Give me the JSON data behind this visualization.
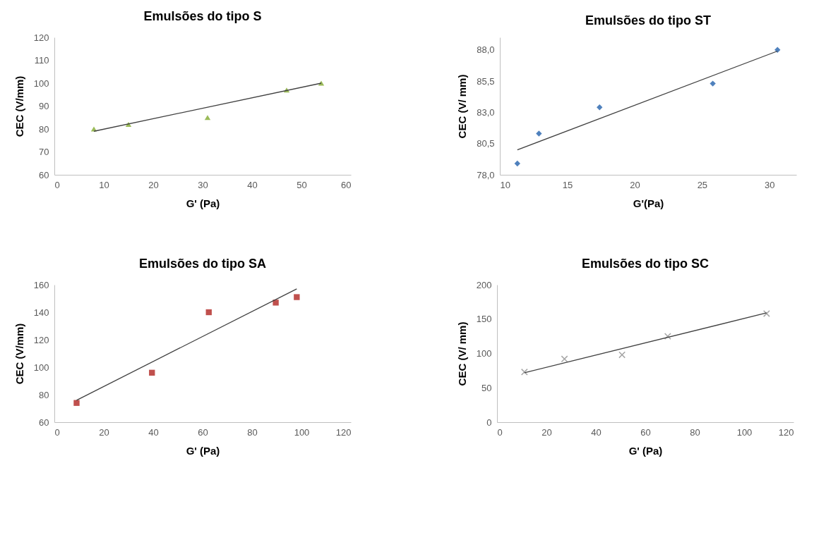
{
  "chart_data": [
    {
      "type": "scatter",
      "title": "Emulsões do tipo S",
      "xlabel": "G' (Pa)",
      "ylabel": "CEC (V/mm)",
      "xlim": [
        0,
        60
      ],
      "xticks": [
        0,
        10,
        20,
        30,
        40,
        50,
        60
      ],
      "ylim": [
        60,
        120
      ],
      "yticks": [
        60,
        70,
        80,
        90,
        100,
        110,
        120
      ],
      "grid": false,
      "series": [
        {
          "marker": "triangle",
          "color": "#9bbb59",
          "x": [
            8,
            15,
            31,
            47,
            54
          ],
          "values": [
            80,
            82,
            85,
            97,
            100
          ]
        },
        {
          "type": "line",
          "marker": "none",
          "color": "#404040",
          "line_style": "solid",
          "x": [
            8,
            54
          ],
          "values": [
            79,
            100
          ]
        }
      ]
    },
    {
      "type": "scatter",
      "title": "Emulsões do tipo ST",
      "xlabel": "G'(Pa)",
      "ylabel": "CEC (V/ mm)",
      "xlim": [
        10,
        32
      ],
      "xticks": [
        10,
        15,
        20,
        25,
        30
      ],
      "ylim": [
        78,
        89
      ],
      "yticks": [
        {
          "value": 78,
          "label": "78,0"
        },
        {
          "value": 80.5,
          "label": "80,5"
        },
        {
          "value": 83,
          "label": "83,0"
        },
        {
          "value": 85.5,
          "label": "85,5"
        },
        {
          "value": 88,
          "label": "88,0"
        }
      ],
      "grid": false,
      "series": [
        {
          "marker": "diamond",
          "color": "#4f81bd",
          "x": [
            11.3,
            12.9,
            17.4,
            25.8,
            30.6
          ],
          "values": [
            78.9,
            81.3,
            83.4,
            85.3,
            88.0
          ]
        },
        {
          "type": "line",
          "marker": "none",
          "color": "#404040",
          "line_style": "solid",
          "x": [
            11.3,
            30.6
          ],
          "values": [
            80.0,
            87.9
          ]
        }
      ]
    },
    {
      "type": "scatter",
      "title": "Emulsões do tipo SA",
      "xlabel": "G' (Pa)",
      "ylabel": "CEC (V/mm)",
      "xlim": [
        0,
        120
      ],
      "xticks": [
        0,
        20,
        40,
        60,
        80,
        100,
        120
      ],
      "ylim": [
        60,
        160
      ],
      "yticks": [
        60,
        80,
        100,
        120,
        140,
        160
      ],
      "grid": false,
      "series": [
        {
          "marker": "square",
          "color": "#c0504d",
          "x": [
            9,
            39.5,
            62.5,
            89.6,
            98.1
          ],
          "values": [
            74,
            96,
            140,
            147,
            151
          ]
        },
        {
          "type": "line",
          "marker": "none",
          "color": "#404040",
          "line_style": "solid",
          "x": [
            9,
            98.1
          ],
          "values": [
            76,
            157
          ]
        }
      ]
    },
    {
      "type": "scatter",
      "title": "Emulsões do tipo SC",
      "xlabel": "G' (Pa)",
      "ylabel": "CEC (V/ mm)",
      "xlim": [
        0,
        120
      ],
      "xticks": [
        0,
        20,
        40,
        60,
        80,
        100,
        120
      ],
      "ylim": [
        0,
        200
      ],
      "yticks": [
        0,
        50,
        100,
        150,
        200
      ],
      "grid": false,
      "series": [
        {
          "marker": "cross",
          "color": "#a6a6a6",
          "x": [
            11.1,
            27.3,
            50.6,
            69.1,
            109.1
          ],
          "values": [
            73,
            92,
            98,
            125,
            158
          ]
        },
        {
          "type": "line",
          "marker": "none",
          "color": "#404040",
          "line_style": "solid",
          "x": [
            11.1,
            109.1
          ],
          "values": [
            72,
            159
          ]
        }
      ]
    }
  ]
}
